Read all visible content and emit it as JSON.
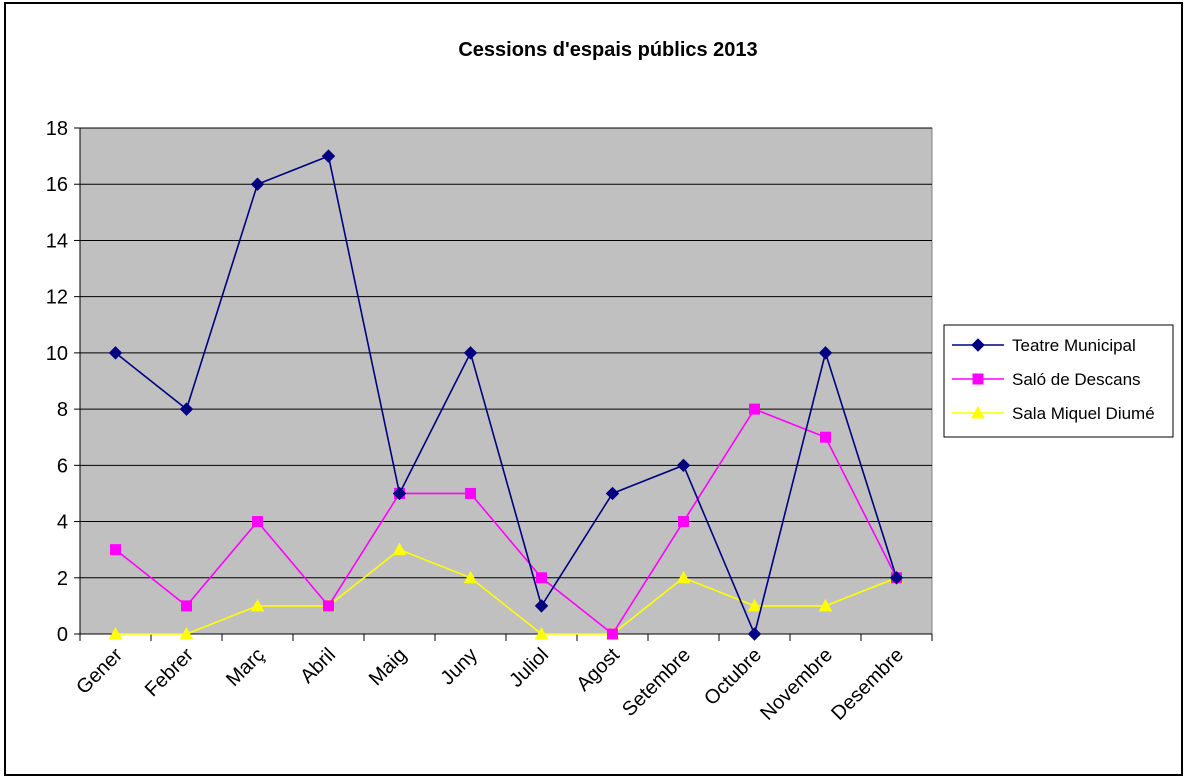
{
  "chart_data": {
    "type": "line",
    "title": "Cessions d'espais públics 2013",
    "xlabel": "",
    "ylabel": "",
    "categories": [
      "Gener",
      "Febrer",
      "Març",
      "Abril",
      "Maig",
      "Juny",
      "Juliol",
      "Agost",
      "Setembre",
      "Octubre",
      "Novembre",
      "Desembre"
    ],
    "ylim": [
      0,
      18
    ],
    "yticks": [
      "0",
      "2",
      "4",
      "6",
      "8",
      "10",
      "12",
      "14",
      "16",
      "18"
    ],
    "grid": true,
    "plot_background": "#c0c0c0",
    "legend_position": "right",
    "series": [
      {
        "name": "Teatre Municipal",
        "color": "#000080",
        "marker": "diamond",
        "values": [
          10,
          8,
          16,
          17,
          5,
          10,
          1,
          5,
          6,
          0,
          10,
          2
        ]
      },
      {
        "name": "Saló de Descans",
        "color": "#ff00ff",
        "marker": "square",
        "values": [
          3,
          1,
          4,
          1,
          5,
          5,
          2,
          0,
          4,
          8,
          7,
          2
        ]
      },
      {
        "name": "Sala Miquel Diumé",
        "color": "#ffff00",
        "marker": "triangle",
        "values": [
          0,
          0,
          1,
          1,
          3,
          2,
          0,
          0,
          2,
          1,
          1,
          2
        ]
      }
    ]
  }
}
